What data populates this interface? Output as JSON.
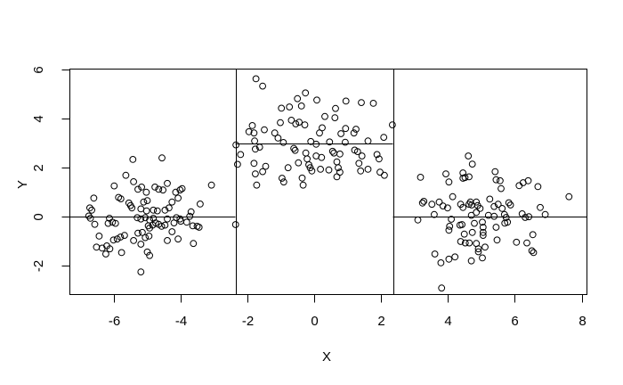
{
  "chart_data": {
    "type": "scatter",
    "title": "",
    "xlabel": "X",
    "ylabel": "Y",
    "xlim": [
      -7.305,
      8.157
    ],
    "ylim": [
      -3.164,
      6.036
    ],
    "xticks": [
      -6,
      -4,
      -2,
      0,
      2,
      4,
      6,
      8
    ],
    "yticks": [
      -2,
      0,
      2,
      4,
      6
    ],
    "grid": false,
    "legend": "none",
    "background": "#ffffff",
    "point_color": "#000000",
    "line_color": "#000000",
    "point_style": "open-circle",
    "splits_x": [
      -2.35,
      2.36
    ],
    "fit_segments": [
      {
        "x1": -7.305,
        "x2": -2.35,
        "y": 0
      },
      {
        "x1": -2.35,
        "x2": 2.36,
        "y": 3
      },
      {
        "x1": 2.36,
        "x2": 8.157,
        "y": 0
      }
    ],
    "points": [
      [
        -5.42,
        2.35
      ],
      [
        -4.55,
        2.41
      ],
      [
        -5.63,
        1.7
      ],
      [
        -5.98,
        1.27
      ],
      [
        -5.4,
        1.44
      ],
      [
        -5.27,
        1.13
      ],
      [
        -5.16,
        1.22
      ],
      [
        -5.02,
        1.01
      ],
      [
        -4.76,
        1.22
      ],
      [
        -4.65,
        1.13
      ],
      [
        -4.52,
        1.1
      ],
      [
        -4.39,
        1.37
      ],
      [
        -4.14,
        1.01
      ],
      [
        -4.01,
        1.1
      ],
      [
        -3.95,
        1.16
      ],
      [
        -3.07,
        1.3
      ],
      [
        -6.59,
        0.77
      ],
      [
        -5.85,
        0.8
      ],
      [
        -5.78,
        0.74
      ],
      [
        -5.54,
        0.57
      ],
      [
        -5.49,
        0.47
      ],
      [
        -5.45,
        0.37
      ],
      [
        -5.1,
        0.61
      ],
      [
        -4.99,
        0.67
      ],
      [
        -5.18,
        0.33
      ],
      [
        -5.01,
        0.25
      ],
      [
        -4.81,
        0.28
      ],
      [
        -4.69,
        0.25
      ],
      [
        -4.46,
        0.28
      ],
      [
        -4.34,
        0.37
      ],
      [
        -4.25,
        0.61
      ],
      [
        -4.07,
        0.77
      ],
      [
        -3.68,
        0.21
      ],
      [
        -3.41,
        0.53
      ],
      [
        -6.71,
        0.37
      ],
      [
        -6.65,
        0.28
      ],
      [
        -6.74,
        0.04
      ],
      [
        -6.69,
        -0.05
      ],
      [
        -6.12,
        -0.05
      ],
      [
        -5.29,
        -0.03
      ],
      [
        -5.18,
        -0.08
      ],
      [
        -5.05,
        -0.03
      ],
      [
        -4.92,
        -0.12
      ],
      [
        -4.81,
        -0.05
      ],
      [
        -4.39,
        -0.08
      ],
      [
        -4.12,
        -0.03
      ],
      [
        -4.01,
        -0.08
      ],
      [
        -3.72,
        0.03
      ],
      [
        -6.56,
        -0.3
      ],
      [
        -6.16,
        -0.26
      ],
      [
        -6.03,
        -0.21
      ],
      [
        -5.94,
        -0.26
      ],
      [
        -6.43,
        -0.78
      ],
      [
        -6.51,
        -1.23
      ],
      [
        -6.34,
        -1.27
      ],
      [
        -6.2,
        -1.18
      ],
      [
        -6.11,
        -1.3
      ],
      [
        -6.23,
        -1.51
      ],
      [
        -6,
        -0.94
      ],
      [
        -5.89,
        -0.9
      ],
      [
        -5.79,
        -0.82
      ],
      [
        -5.67,
        -0.75
      ],
      [
        -5.76,
        -1.45
      ],
      [
        -5.4,
        -0.96
      ],
      [
        -5.27,
        -0.66
      ],
      [
        -5.14,
        -0.63
      ],
      [
        -5.18,
        -1.11
      ],
      [
        -5.05,
        -0.84
      ],
      [
        -4.94,
        -0.78
      ],
      [
        -5.18,
        -2.24
      ],
      [
        -4.99,
        -1.43
      ],
      [
        -4.92,
        -1.57
      ],
      [
        -4.96,
        -0.36
      ],
      [
        -4.92,
        -0.45
      ],
      [
        -4.83,
        -0.33
      ],
      [
        -4.74,
        -0.24
      ],
      [
        -4.65,
        -0.3
      ],
      [
        -4.56,
        -0.38
      ],
      [
        -4.46,
        -0.33
      ],
      [
        -4.39,
        -0.96
      ],
      [
        -4.25,
        -0.6
      ],
      [
        -4.19,
        -0.24
      ],
      [
        -4.07,
        -0.9
      ],
      [
        -3.99,
        -0.17
      ],
      [
        -3.81,
        -0.21
      ],
      [
        -3.63,
        -0.36
      ],
      [
        -3.5,
        -0.38
      ],
      [
        -3.44,
        -0.42
      ],
      [
        -3.61,
        -1.08
      ],
      [
        -2.35,
        -0.31
      ],
      [
        -1.74,
        5.64
      ],
      [
        -1.54,
        5.34
      ],
      [
        -0.5,
        4.83
      ],
      [
        -0.26,
        5.06
      ],
      [
        -0.38,
        4.53
      ],
      [
        0.08,
        4.77
      ],
      [
        -0.98,
        4.44
      ],
      [
        -0.74,
        4.49
      ],
      [
        0.95,
        4.73
      ],
      [
        0.64,
        4.43
      ],
      [
        1.41,
        4.67
      ],
      [
        1.77,
        4.64
      ],
      [
        -1.01,
        3.85
      ],
      [
        -0.68,
        3.95
      ],
      [
        -0.55,
        3.8
      ],
      [
        -0.45,
        3.87
      ],
      [
        -0.28,
        3.76
      ],
      [
        0.32,
        4.1
      ],
      [
        0.62,
        4.05
      ],
      [
        -1.85,
        3.73
      ],
      [
        -1.95,
        3.48
      ],
      [
        -1.8,
        3.43
      ],
      [
        -1.49,
        3.56
      ],
      [
        -1.18,
        3.43
      ],
      [
        -1.08,
        3.22
      ],
      [
        0.24,
        3.64
      ],
      [
        0.16,
        3.43
      ],
      [
        0.8,
        3.4
      ],
      [
        0.94,
        3.61
      ],
      [
        1.19,
        3.43
      ],
      [
        1.25,
        3.58
      ],
      [
        2.08,
        3.25
      ],
      [
        2.34,
        3.76
      ],
      [
        1.61,
        3.1
      ],
      [
        -1.78,
        3.1
      ],
      [
        -0.92,
        3.04
      ],
      [
        -0.1,
        3.08
      ],
      [
        0.06,
        2.97
      ],
      [
        0.46,
        3.06
      ],
      [
        0.93,
        3.05
      ],
      [
        -2.34,
        2.94
      ],
      [
        -1.76,
        2.77
      ],
      [
        -1.63,
        2.85
      ],
      [
        -2.2,
        2.55
      ],
      [
        -2.29,
        2.15
      ],
      [
        -1.8,
        2.19
      ],
      [
        -1.45,
        2.07
      ],
      [
        -1.76,
        1.76
      ],
      [
        -1.54,
        1.85
      ],
      [
        -1.72,
        1.3
      ],
      [
        -0.96,
        1.58
      ],
      [
        -0.91,
        1.43
      ],
      [
        -0.78,
        2.01
      ],
      [
        -0.61,
        2.8
      ],
      [
        -0.57,
        2.72
      ],
      [
        -0.47,
        2.21
      ],
      [
        -0.36,
        1.59
      ],
      [
        -0.33,
        1.3
      ],
      [
        -0.25,
        2.61
      ],
      [
        -0.21,
        2.37
      ],
      [
        -0.16,
        2.13
      ],
      [
        -0.12,
        2.01
      ],
      [
        -0.07,
        1.88
      ],
      [
        0.06,
        2.49
      ],
      [
        0.22,
        2.43
      ],
      [
        0.19,
        1.95
      ],
      [
        0.44,
        1.92
      ],
      [
        0.59,
        2.61
      ],
      [
        0.55,
        2.68
      ],
      [
        0.77,
        2.57
      ],
      [
        0.68,
        2.25
      ],
      [
        0.72,
        2.01
      ],
      [
        0.77,
        1.83
      ],
      [
        0.68,
        1.64
      ],
      [
        1.21,
        2.73
      ],
      [
        1.3,
        2.67
      ],
      [
        1.43,
        2.49
      ],
      [
        1.34,
        2.19
      ],
      [
        1.39,
        1.88
      ],
      [
        1.61,
        1.95
      ],
      [
        1.88,
        2.55
      ],
      [
        1.94,
        2.37
      ],
      [
        1.97,
        1.83
      ],
      [
        2.1,
        1.7
      ],
      [
        4.61,
        2.49
      ],
      [
        4.73,
        2.16
      ],
      [
        4.45,
        1.8
      ],
      [
        4.51,
        1.61
      ],
      [
        4.45,
        1.58
      ],
      [
        4.63,
        1.64
      ],
      [
        3.18,
        1.62
      ],
      [
        3.94,
        1.76
      ],
      [
        4.03,
        1.43
      ],
      [
        5.41,
        1.85
      ],
      [
        5.44,
        1.52
      ],
      [
        5.56,
        1.48
      ],
      [
        5.59,
        1.16
      ],
      [
        6.13,
        1.28
      ],
      [
        6.25,
        1.4
      ],
      [
        6.4,
        1.48
      ],
      [
        6.69,
        1.24
      ],
      [
        7.62,
        0.83
      ],
      [
        3.28,
        0.64
      ],
      [
        3.24,
        0.57
      ],
      [
        3.52,
        0.52
      ],
      [
        3.74,
        0.61
      ],
      [
        3.85,
        0.45
      ],
      [
        3.99,
        0.37
      ],
      [
        4.14,
        0.83
      ],
      [
        4.38,
        0.52
      ],
      [
        4.45,
        0.39
      ],
      [
        4.63,
        0.52
      ],
      [
        4.71,
        0.49
      ],
      [
        4.67,
        0.61
      ],
      [
        4.85,
        0.61
      ],
      [
        4.89,
        0.47
      ],
      [
        4.96,
        0.35
      ],
      [
        5.25,
        0.73
      ],
      [
        5.38,
        0.43
      ],
      [
        5.5,
        0.52
      ],
      [
        5.62,
        0.35
      ],
      [
        5.87,
        0.49
      ],
      [
        5.82,
        0.58
      ],
      [
        6.22,
        0.13
      ],
      [
        6.76,
        0.39
      ],
      [
        6.91,
        0.1
      ],
      [
        3.59,
        0.1
      ],
      [
        4.7,
        0.07
      ],
      [
        4.85,
        0.19
      ],
      [
        5.21,
        0.07
      ],
      [
        5.38,
        0.03
      ],
      [
        5.69,
        0.1
      ],
      [
        5.74,
        -0.02
      ],
      [
        6.31,
        -0.02
      ],
      [
        6.42,
        0.01
      ],
      [
        3.1,
        -0.12
      ],
      [
        4.1,
        -0.09
      ],
      [
        4.05,
        -0.38
      ],
      [
        4.03,
        -0.54
      ],
      [
        4.36,
        -0.33
      ],
      [
        4.42,
        -0.31
      ],
      [
        4.49,
        -0.7
      ],
      [
        4.79,
        -0.26
      ],
      [
        4.73,
        -0.63
      ],
      [
        5.03,
        -0.21
      ],
      [
        5.05,
        -0.42
      ],
      [
        5.05,
        -0.63
      ],
      [
        5.05,
        -0.75
      ],
      [
        4.38,
        -1
      ],
      [
        4.52,
        -1.06
      ],
      [
        4.64,
        -1.06
      ],
      [
        4.85,
        -1.08
      ],
      [
        4.91,
        -1.3
      ],
      [
        4.91,
        -1.42
      ],
      [
        5.11,
        -1.23
      ],
      [
        5.03,
        -1.67
      ],
      [
        5.47,
        -0.94
      ],
      [
        5.44,
        -0.42
      ],
      [
        5.78,
        -0.21
      ],
      [
        5.7,
        -0.25
      ],
      [
        6.05,
        -1.03
      ],
      [
        6.36,
        -1.06
      ],
      [
        6.54,
        -0.72
      ],
      [
        6.56,
        -1.45
      ],
      [
        6.51,
        -1.38
      ],
      [
        3.61,
        -1.51
      ],
      [
        3.79,
        -1.87
      ],
      [
        4.03,
        -1.72
      ],
      [
        4.21,
        -1.63
      ],
      [
        4.7,
        -1.79
      ],
      [
        3.81,
        -2.9
      ]
    ]
  }
}
